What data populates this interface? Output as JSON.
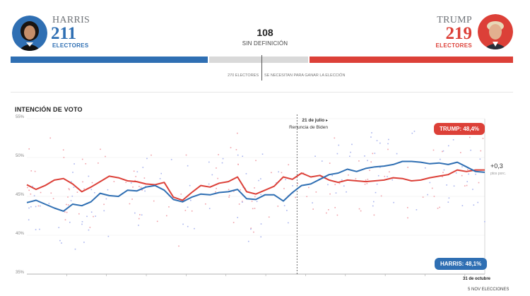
{
  "header": {
    "left": {
      "name": "HARRIS",
      "count": "211",
      "label": "ELECTORES",
      "color": "#2f6fb3"
    },
    "middle": {
      "count": "108",
      "label": "SIN DEFINICIÓN",
      "color": "#d9d9d9"
    },
    "right": {
      "name": "TRUMP",
      "count": "219",
      "label": "ELECTORES",
      "color": "#dc4038"
    },
    "threshold_left": "270 ELECTORES",
    "threshold_right": "SE NECESITAN PARA GANAR LA ELECCIÓN",
    "seats": {
      "harris": 211,
      "undecided": 108,
      "trump": 219
    }
  },
  "chart_data": {
    "type": "line",
    "title": "INTENCIÓN DE VOTO",
    "ylim": [
      35,
      55
    ],
    "yticks": [
      "35%",
      "40%",
      "45%",
      "50%",
      "55%"
    ],
    "annotation": {
      "date": "21 de julio",
      "text": "Renuncia de Biden",
      "x": 0.59
    },
    "end_label": "31 de octubre",
    "footer": "5 NOV ELECCIONES",
    "difference": {
      "value": "+0,3",
      "unit": "ptos porc."
    },
    "series": [
      {
        "name": "TRUMP",
        "label": "TRUMP: 48,4%",
        "color": "#dc4038",
        "x": [
          0,
          0.02,
          0.04,
          0.06,
          0.08,
          0.1,
          0.12,
          0.14,
          0.16,
          0.18,
          0.2,
          0.22,
          0.24,
          0.26,
          0.28,
          0.3,
          0.32,
          0.34,
          0.36,
          0.38,
          0.4,
          0.42,
          0.44,
          0.46,
          0.48,
          0.5,
          0.52,
          0.54,
          0.56,
          0.58,
          0.6,
          0.62,
          0.64,
          0.66,
          0.68,
          0.7,
          0.72,
          0.74,
          0.76,
          0.78,
          0.8,
          0.82,
          0.84,
          0.86,
          0.88,
          0.9,
          0.92,
          0.94,
          0.96,
          0.98,
          1.0
        ],
        "values": [
          46.5,
          45.9,
          46.4,
          47.1,
          47.3,
          46.6,
          45.6,
          46.2,
          46.9,
          47.6,
          47.4,
          47.0,
          46.9,
          46.6,
          46.5,
          46.8,
          44.9,
          44.5,
          45.5,
          46.4,
          46.2,
          46.7,
          46.9,
          47.5,
          45.6,
          45.3,
          45.8,
          46.3,
          47.5,
          47.2,
          48.0,
          47.5,
          47.7,
          47.1,
          46.8,
          47.1,
          47.0,
          46.9,
          47.0,
          47.1,
          47.4,
          47.3,
          47.0,
          47.1,
          47.4,
          47.6,
          47.8,
          48.4,
          48.2,
          48.4,
          48.4
        ]
      },
      {
        "name": "HARRIS",
        "label": "HARRIS: 48,1%",
        "color": "#2f6fb3",
        "x": [
          0,
          0.02,
          0.04,
          0.06,
          0.08,
          0.1,
          0.12,
          0.14,
          0.16,
          0.18,
          0.2,
          0.22,
          0.24,
          0.26,
          0.28,
          0.3,
          0.32,
          0.34,
          0.36,
          0.38,
          0.4,
          0.42,
          0.44,
          0.46,
          0.48,
          0.5,
          0.52,
          0.54,
          0.56,
          0.58,
          0.6,
          0.62,
          0.64,
          0.66,
          0.68,
          0.7,
          0.72,
          0.74,
          0.76,
          0.78,
          0.8,
          0.82,
          0.84,
          0.86,
          0.88,
          0.9,
          0.92,
          0.94,
          0.96,
          0.98,
          1.0
        ],
        "values": [
          44.2,
          44.5,
          44.0,
          43.5,
          43.1,
          44.0,
          43.8,
          44.3,
          45.4,
          45.1,
          45.0,
          45.8,
          45.7,
          46.2,
          46.4,
          45.8,
          44.6,
          44.3,
          44.9,
          45.3,
          45.2,
          45.5,
          45.6,
          45.9,
          44.7,
          44.6,
          45.2,
          45.2,
          44.4,
          45.5,
          46.4,
          46.6,
          47.2,
          47.8,
          48.0,
          48.5,
          48.2,
          48.6,
          48.8,
          48.9,
          49.1,
          49.5,
          49.5,
          49.4,
          49.2,
          49.3,
          49.1,
          49.4,
          48.8,
          48.2,
          48.1
        ]
      }
    ]
  }
}
